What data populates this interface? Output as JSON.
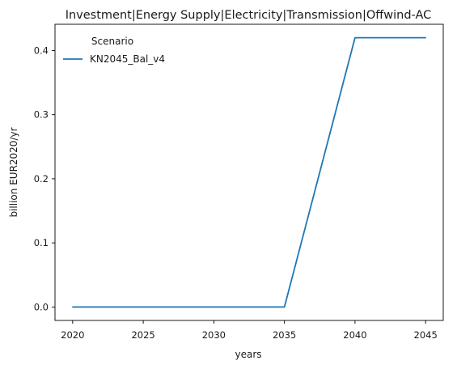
{
  "chart_data": {
    "type": "line",
    "title": "Investment|Energy Supply|Electricity|Transmission|Offwind-AC",
    "xlabel": "years",
    "ylabel": "billion EUR2020/yr",
    "x": [
      2020,
      2025,
      2030,
      2035,
      2040,
      2045
    ],
    "xticks": [
      2020,
      2025,
      2030,
      2035,
      2040,
      2045
    ],
    "yticks": [
      0.0,
      0.1,
      0.2,
      0.3,
      0.4
    ],
    "ytick_labels": [
      "0.0",
      "0.1",
      "0.2",
      "0.3",
      "0.4"
    ],
    "xlim": [
      2018.75,
      2046.25
    ],
    "ylim": [
      -0.021,
      0.441
    ],
    "grid": false,
    "legend": {
      "title": "Scenario",
      "placement": "top-left"
    },
    "series": [
      {
        "name": "KN2045_Bal_v4",
        "color": "#1f77b4",
        "values": [
          0.0,
          0.0,
          0.0,
          0.0,
          0.42,
          0.42
        ]
      }
    ]
  }
}
